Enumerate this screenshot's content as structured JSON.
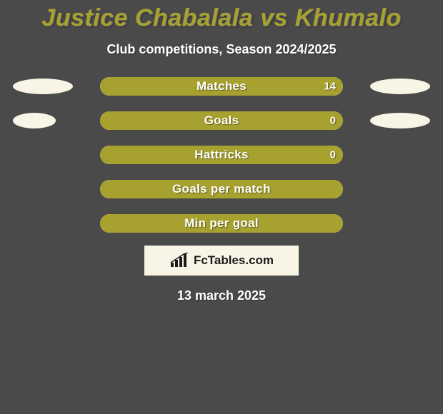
{
  "colors": {
    "page_bg": "#4a4a4a",
    "title": "#a7a12f",
    "text": "#ffffff",
    "bar_bg": "#a7a12f",
    "bar_fill": "#f9f5e6",
    "bubble": "#f9f5e6",
    "attr_bg": "#f9f5e6",
    "attr_text": "#1a1a1a",
    "attr_icon": "#1a1a1a"
  },
  "header": {
    "title": "Justice Chabalala vs Khumalo",
    "subtitle": "Club competitions, Season 2024/2025"
  },
  "stats": [
    {
      "label": "Matches",
      "left_value": "",
      "right_value": "14",
      "left_fill_pct": 0,
      "right_fill_pct": 100,
      "left_bubble_w": 84,
      "right_bubble_w": 84
    },
    {
      "label": "Goals",
      "left_value": "",
      "right_value": "0",
      "left_fill_pct": 0,
      "right_fill_pct": 100,
      "left_bubble_w": 60,
      "right_bubble_w": 84
    },
    {
      "label": "Hattricks",
      "left_value": "",
      "right_value": "0",
      "left_fill_pct": 0,
      "right_fill_pct": 100,
      "left_bubble_w": 0,
      "right_bubble_w": 0
    },
    {
      "label": "Goals per match",
      "left_value": "",
      "right_value": "",
      "left_fill_pct": 0,
      "right_fill_pct": 100,
      "left_bubble_w": 0,
      "right_bubble_w": 0
    },
    {
      "label": "Min per goal",
      "left_value": "",
      "right_value": "",
      "left_fill_pct": 0,
      "right_fill_pct": 100,
      "left_bubble_w": 0,
      "right_bubble_w": 0
    }
  ],
  "attribution": {
    "text": "FcTables.com"
  },
  "date": "13 march 2025"
}
